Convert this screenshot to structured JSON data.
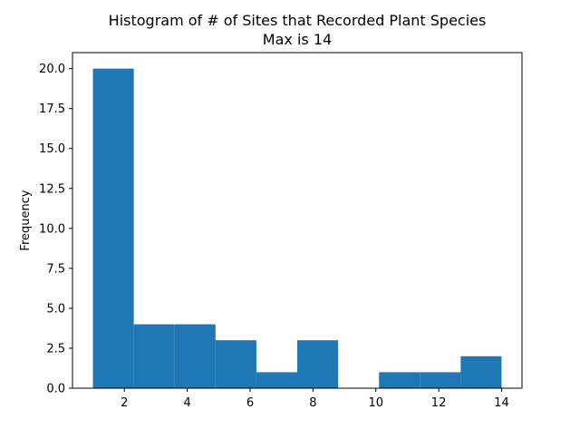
{
  "chart_data": {
    "type": "bar",
    "title": "Histogram of # of Sites that Recorded Plant Species",
    "subtitle": "Max is 14",
    "xlabel": "",
    "ylabel": "Frequency",
    "xlim": [
      0.35,
      14.65
    ],
    "ylim": [
      0,
      21
    ],
    "bin_edges": [
      1,
      2.3,
      3.6,
      4.9,
      6.2,
      7.5,
      8.8,
      10.1,
      11.4,
      12.7,
      14
    ],
    "values": [
      20,
      4,
      4,
      3,
      1,
      3,
      0,
      1,
      1,
      2
    ],
    "x_ticks": [
      2,
      4,
      6,
      8,
      10,
      12,
      14
    ],
    "x_tick_labels": [
      "2",
      "4",
      "6",
      "8",
      "10",
      "12",
      "14"
    ],
    "y_ticks": [
      0,
      2.5,
      5,
      7.5,
      10,
      12.5,
      15,
      17.5,
      20
    ],
    "y_tick_labels": [
      "0.0",
      "2.5",
      "5.0",
      "7.5",
      "10.0",
      "12.5",
      "15.0",
      "17.5",
      "20.0"
    ],
    "bar_color": "#1f77b4",
    "grid": false,
    "legend": "none"
  }
}
